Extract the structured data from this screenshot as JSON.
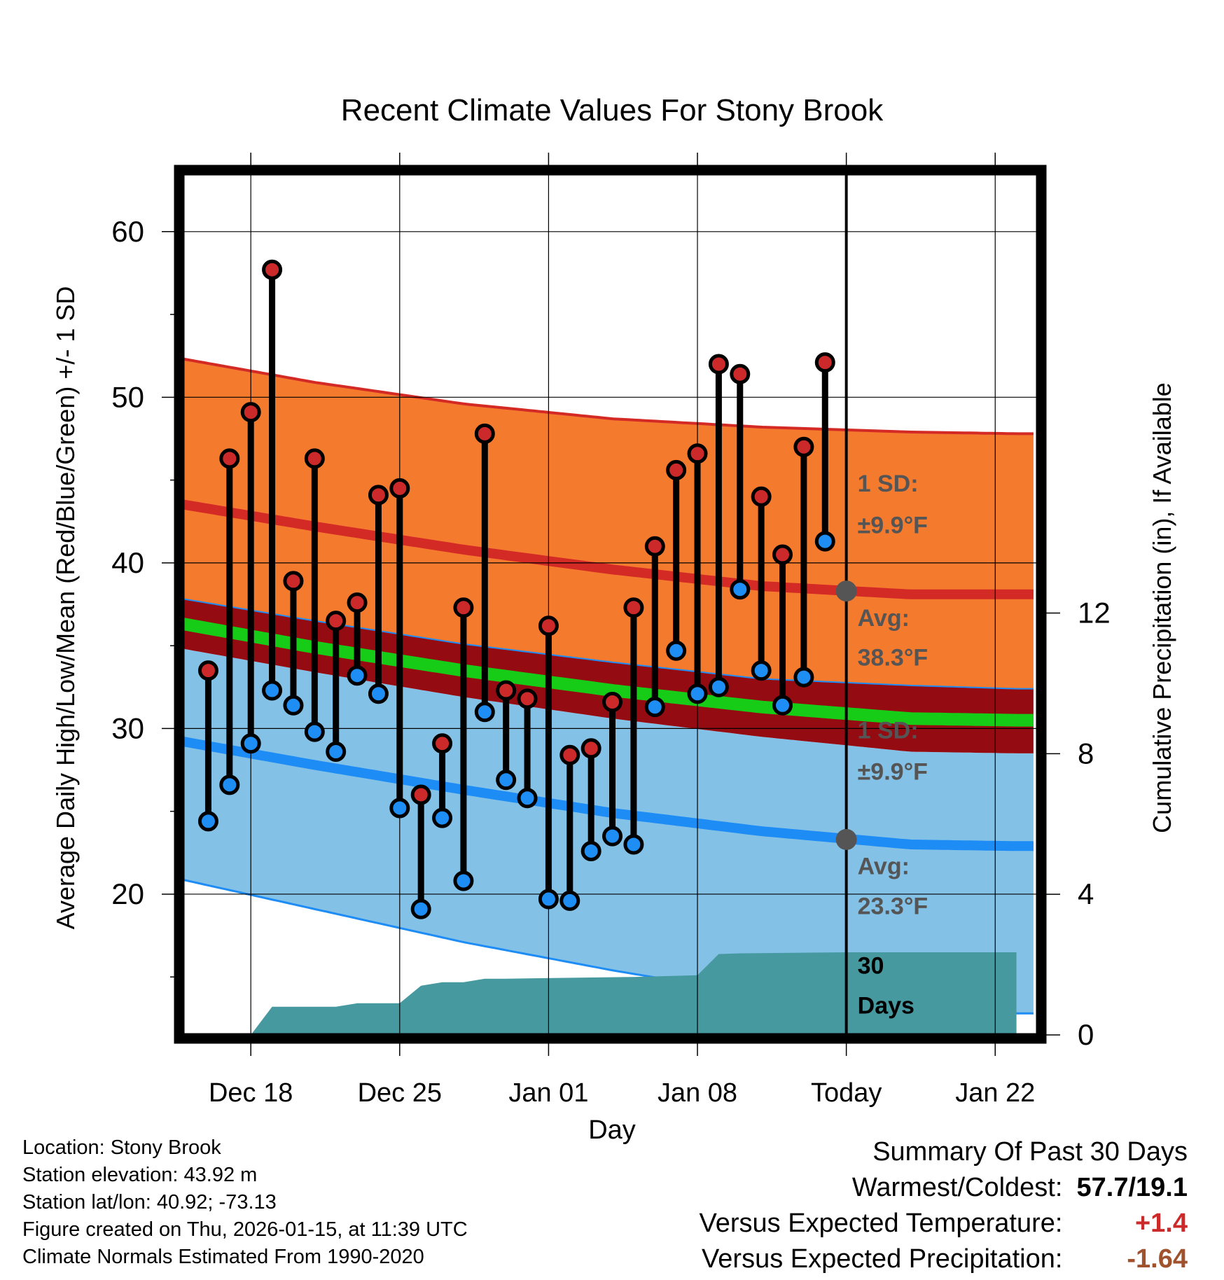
{
  "chart_data": {
    "type": "line",
    "title": "Recent Climate Values For Stony Brook",
    "xlabel": "Day",
    "ylabel": "Average Daily High/Low/Mean (Red/Blue/Green) +/- 1 SD",
    "y2label": "Cumulative Precipitation (in), If Available",
    "x_tick_labels": [
      "Dec 18",
      "Dec 25",
      "Jan 01",
      "Jan 08",
      "Today",
      "Jan 22"
    ],
    "x_tick_days": [
      2,
      9,
      16,
      23,
      30,
      37
    ],
    "xlim": [
      -1.2,
      39
    ],
    "ylim": [
      11.5,
      63.5
    ],
    "y_ticks": [
      20,
      30,
      40,
      50,
      60
    ],
    "y2_ticks": [
      0,
      4,
      8,
      12
    ],
    "y2lim": [
      0,
      24.5
    ],
    "grid": true,
    "today_day": 30,
    "days": [
      0,
      1,
      2,
      3,
      4,
      5,
      6,
      7,
      8,
      9,
      10,
      11,
      12,
      13,
      14,
      15,
      16,
      17,
      18,
      19,
      20,
      21,
      22,
      23,
      24,
      25,
      26,
      27,
      28,
      29
    ],
    "highs": [
      33.5,
      46.3,
      49.1,
      57.7,
      38.9,
      46.3,
      36.5,
      37.6,
      44.1,
      44.5,
      26.0,
      29.1,
      37.3,
      47.8,
      32.3,
      31.8,
      36.2,
      28.4,
      28.8,
      31.6,
      37.3,
      41.0,
      45.6,
      46.6,
      52.0,
      51.4,
      44.0,
      40.5,
      47.0,
      52.1
    ],
    "lows": [
      24.4,
      26.6,
      29.1,
      32.3,
      31.4,
      29.8,
      28.6,
      33.2,
      32.1,
      25.2,
      19.1,
      24.6,
      20.8,
      31.0,
      26.9,
      25.8,
      19.7,
      19.6,
      22.6,
      23.5,
      23.0,
      31.3,
      34.7,
      32.1,
      32.5,
      38.4,
      33.5,
      31.4,
      33.1,
      41.3
    ],
    "normal_days": [
      -2,
      5,
      12,
      19,
      26,
      33,
      38
    ],
    "normal_high": [
      43.7,
      42.2,
      40.8,
      39.6,
      38.6,
      38.1,
      38.1
    ],
    "normal_high_upper": [
      52.5,
      50.9,
      49.6,
      48.7,
      48.2,
      47.9,
      47.8
    ],
    "normal_low": [
      29.4,
      27.8,
      26.3,
      24.9,
      23.8,
      23.0,
      22.9
    ],
    "normal_low_lower": [
      21.1,
      19.1,
      17.1,
      15.4,
      13.9,
      13.0,
      12.8
    ],
    "normal_mean": [
      36.5,
      34.9,
      33.5,
      32.3,
      31.3,
      30.6,
      30.5
    ],
    "mean_upper": [
      38.0,
      36.5,
      35.1,
      34.0,
      33.0,
      32.6,
      32.4
    ],
    "mean_lower": [
      35.0,
      33.4,
      31.9,
      30.6,
      29.5,
      28.6,
      28.5
    ],
    "precip_days": [
      2,
      3,
      6,
      7,
      9,
      10,
      11,
      12,
      13,
      14,
      20,
      23,
      24,
      25,
      30,
      38
    ],
    "precip_cum": [
      0,
      0.8,
      0.8,
      0.9,
      0.9,
      1.4,
      1.5,
      1.5,
      1.6,
      1.6,
      1.65,
      1.7,
      2.3,
      2.32,
      2.35,
      2.35
    ],
    "annotations": {
      "high_sd": "1 SD:",
      "high_sd_value": "±9.9°F",
      "high_avg": "Avg:",
      "high_avg_value": "38.3°F",
      "low_sd": "1 SD:",
      "low_sd_value": "±9.9°F",
      "low_avg": "Avg:",
      "low_avg_value": "23.3°F",
      "days_window": "30",
      "days_window_unit": "Days",
      "today_high_avg": 38.3,
      "today_low_avg": 23.3
    },
    "colors": {
      "high_band": "#f47a2e",
      "high_line": "#d42a26",
      "low_band": "#83c1e7",
      "low_line": "#1e8cf5",
      "mean_band": "#940c12",
      "mean_line": "#16cc16",
      "precip": "#4799a0",
      "high_marker": "#cc2a2a",
      "low_marker": "#1e8ef5",
      "avg_marker": "#555555",
      "annotation_text": "#555555"
    }
  },
  "info": {
    "location": "Location: Stony Brook",
    "elevation": "Station elevation: 43.92 m",
    "latlon": "Station lat/lon: 40.92; -73.13",
    "created": "Figure created on Thu, 2026-01-15, at 11:39 UTC",
    "normals": "Climate Normals Estimated From 1990-2020"
  },
  "summary": {
    "title": "Summary Of Past 30 Days",
    "warmest_label": "Warmest/Coldest:",
    "warmest_value": "57.7/19.1",
    "temp_label": "Versus Expected Temperature:",
    "temp_value": "+1.4",
    "temp_color": "#cc2a2a",
    "precip_label": "Versus Expected Precipitation:",
    "precip_value": "-1.64",
    "precip_color": "#a0522d"
  }
}
